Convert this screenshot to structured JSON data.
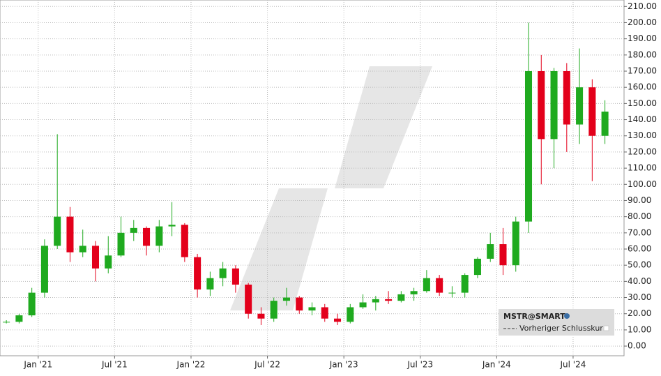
{
  "chart_data": {
    "type": "candlestick",
    "x": [
      "2020-10",
      "2020-11",
      "2020-12",
      "2021-01",
      "2021-02",
      "2021-03",
      "2021-04",
      "2021-05",
      "2021-06",
      "2021-07",
      "2021-08",
      "2021-09",
      "2021-10",
      "2021-11",
      "2021-12",
      "2022-01",
      "2022-02",
      "2022-03",
      "2022-04",
      "2022-05",
      "2022-06",
      "2022-07",
      "2022-08",
      "2022-09",
      "2022-10",
      "2022-11",
      "2022-12",
      "2023-01",
      "2023-02",
      "2023-03",
      "2023-04",
      "2023-05",
      "2023-06",
      "2023-07",
      "2023-08",
      "2023-09",
      "2023-10",
      "2023-11",
      "2023-12",
      "2024-01",
      "2024-02",
      "2024-03",
      "2024-04",
      "2024-05",
      "2024-06",
      "2024-07",
      "2024-08",
      "2024-09"
    ],
    "open": [
      15,
      15,
      19,
      33,
      62,
      80,
      58,
      62,
      48,
      56,
      70,
      73,
      62,
      74,
      75,
      55,
      35,
      42,
      48,
      38,
      20,
      17,
      28,
      30,
      22,
      24,
      17,
      15,
      24,
      27,
      29,
      28,
      32,
      34,
      42,
      33,
      33,
      44,
      54,
      63,
      50,
      77,
      170,
      128,
      170,
      137,
      160,
      130
    ],
    "high": [
      16,
      20,
      36,
      66,
      131,
      86,
      72,
      65,
      68,
      80,
      78,
      74,
      78,
      89,
      76,
      57,
      46,
      52,
      50,
      39,
      24,
      30,
      36,
      31,
      27,
      26,
      20,
      26,
      32,
      31,
      34,
      34,
      36,
      47,
      44,
      37,
      45,
      55,
      70,
      73,
      80,
      200,
      180,
      172,
      175,
      184,
      165,
      152
    ],
    "low": [
      14,
      14,
      18,
      30,
      60,
      52,
      55,
      40,
      45,
      55,
      65,
      56,
      58,
      68,
      52,
      30,
      31,
      37,
      33,
      17,
      13,
      15,
      25,
      20,
      19,
      15,
      13,
      14,
      23,
      22,
      26,
      27,
      28,
      33,
      31,
      30,
      30,
      42,
      52,
      44,
      46,
      70,
      100,
      110,
      120,
      125,
      102,
      125
    ],
    "close": [
      15,
      19,
      33,
      62,
      80,
      58,
      62,
      48,
      56,
      70,
      73,
      62,
      74,
      75,
      55,
      35,
      42,
      48,
      38,
      20,
      17,
      28,
      30,
      22,
      24,
      17,
      15,
      24,
      27,
      29,
      28,
      32,
      34,
      42,
      33,
      33,
      44,
      54,
      63,
      50,
      77,
      170,
      128,
      170,
      137,
      160,
      130,
      145
    ],
    "up_color": "#1faa1f",
    "down_color": "#e3001b",
    "xlim": [
      "2020-10",
      "2024-11"
    ],
    "xticks": [
      {
        "value": "2021-01",
        "label": "Jan '21"
      },
      {
        "value": "2021-07",
        "label": "Jul '21"
      },
      {
        "value": "2022-01",
        "label": "Jan '22"
      },
      {
        "value": "2022-07",
        "label": "Jul '22"
      },
      {
        "value": "2023-01",
        "label": "Jan '23"
      },
      {
        "value": "2023-07",
        "label": "Jul '23"
      },
      {
        "value": "2024-01",
        "label": "Jan '24"
      },
      {
        "value": "2024-07",
        "label": "Jul '24"
      }
    ],
    "ylim": [
      -6,
      214
    ],
    "yticks": [
      {
        "value": 0,
        "label": "0.00"
      },
      {
        "value": 10,
        "label": "10.00"
      },
      {
        "value": 20,
        "label": "20.00"
      },
      {
        "value": 30,
        "label": "30.00"
      },
      {
        "value": 40,
        "label": "40.00"
      },
      {
        "value": 50,
        "label": "50.00"
      },
      {
        "value": 60,
        "label": "60.00"
      },
      {
        "value": 70,
        "label": "70.00"
      },
      {
        "value": 80,
        "label": "80.00"
      },
      {
        "value": 90,
        "label": "90.00"
      },
      {
        "value": 100,
        "label": "100.00"
      },
      {
        "value": 110,
        "label": "110.00"
      },
      {
        "value": 120,
        "label": "120.00"
      },
      {
        "value": 130,
        "label": "130.00"
      },
      {
        "value": 140,
        "label": "140.00"
      },
      {
        "value": 150,
        "label": "150.00"
      },
      {
        "value": 160,
        "label": "160.00"
      },
      {
        "value": 170,
        "label": "170.00"
      },
      {
        "value": 180,
        "label": "180.00"
      },
      {
        "value": 190,
        "label": "190.00"
      },
      {
        "value": 200,
        "label": "200.00"
      },
      {
        "value": 210,
        "label": "210.00"
      }
    ],
    "grid": true,
    "legend": {
      "symbol": "MSTR@SMART",
      "line": "Vorheriger Schlusskurs"
    }
  }
}
